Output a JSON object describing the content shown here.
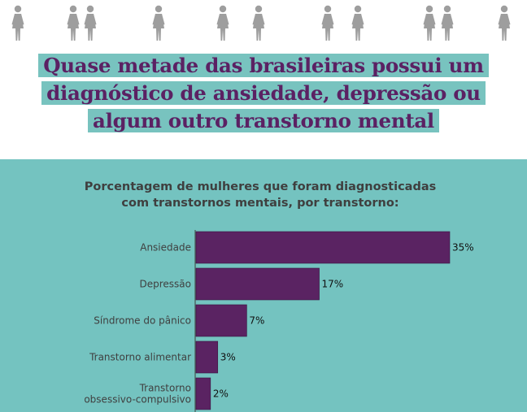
{
  "headline": {
    "lines": [
      "Quase metade das brasileiras possui um",
      "diagnóstico de ansiedade, depressão ou",
      "algum outro transtorno mental"
    ]
  },
  "icons": {
    "name": "woman-icon",
    "color": "#9e9e9e",
    "count": 13
  },
  "colors": {
    "accent_purple": "#5b2163",
    "teal": "#74c3c0",
    "bar": "#5a2362"
  },
  "chart_data": {
    "type": "bar",
    "orientation": "horizontal",
    "title_lines": [
      "Porcentagem de mulheres que foram diagnosticadas",
      "com transtornos mentais, por transtorno:"
    ],
    "categories": [
      [
        "Ansiedade"
      ],
      [
        "Depressão"
      ],
      [
        "Síndrome do pânico"
      ],
      [
        "Transtorno alimentar"
      ],
      [
        "Transtorno",
        "obsessivo-compulsivo"
      ]
    ],
    "values": [
      35,
      17,
      7,
      3,
      2
    ],
    "value_labels": [
      "35%",
      "17%",
      "7%",
      "3%",
      "2%"
    ],
    "unit": "%",
    "xlim": [
      0,
      35
    ],
    "grid": false
  }
}
